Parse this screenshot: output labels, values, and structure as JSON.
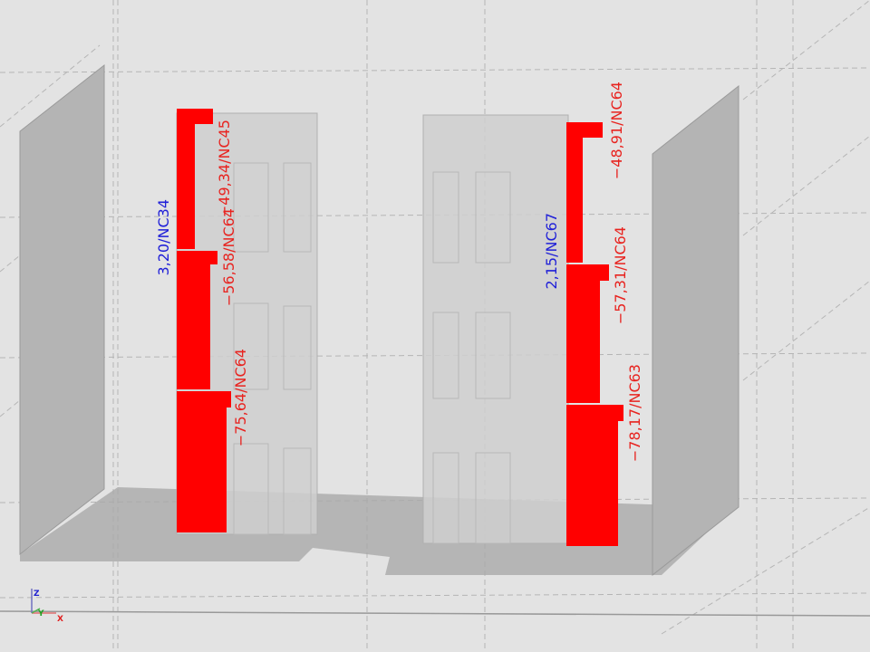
{
  "colors": {
    "result": "#ff0000",
    "negative_label": "#e8231f",
    "positive_label": "#2020d8",
    "panel": "#c8c8c8",
    "background": "#e3e3e3"
  },
  "left_wall": {
    "labels": {
      "top": "−49,34/NC45",
      "middle": "−56,58/NC64",
      "bottom": "−75,64/NC64",
      "max": "3,20/NC34"
    }
  },
  "right_wall": {
    "labels": {
      "top": "−48,91/NC64",
      "middle": "−57,31/NC64",
      "bottom": "−78,17/NC63",
      "max": "2,15/NC67"
    }
  },
  "axes": {
    "z": "Z",
    "y": "Y",
    "x": "X"
  }
}
